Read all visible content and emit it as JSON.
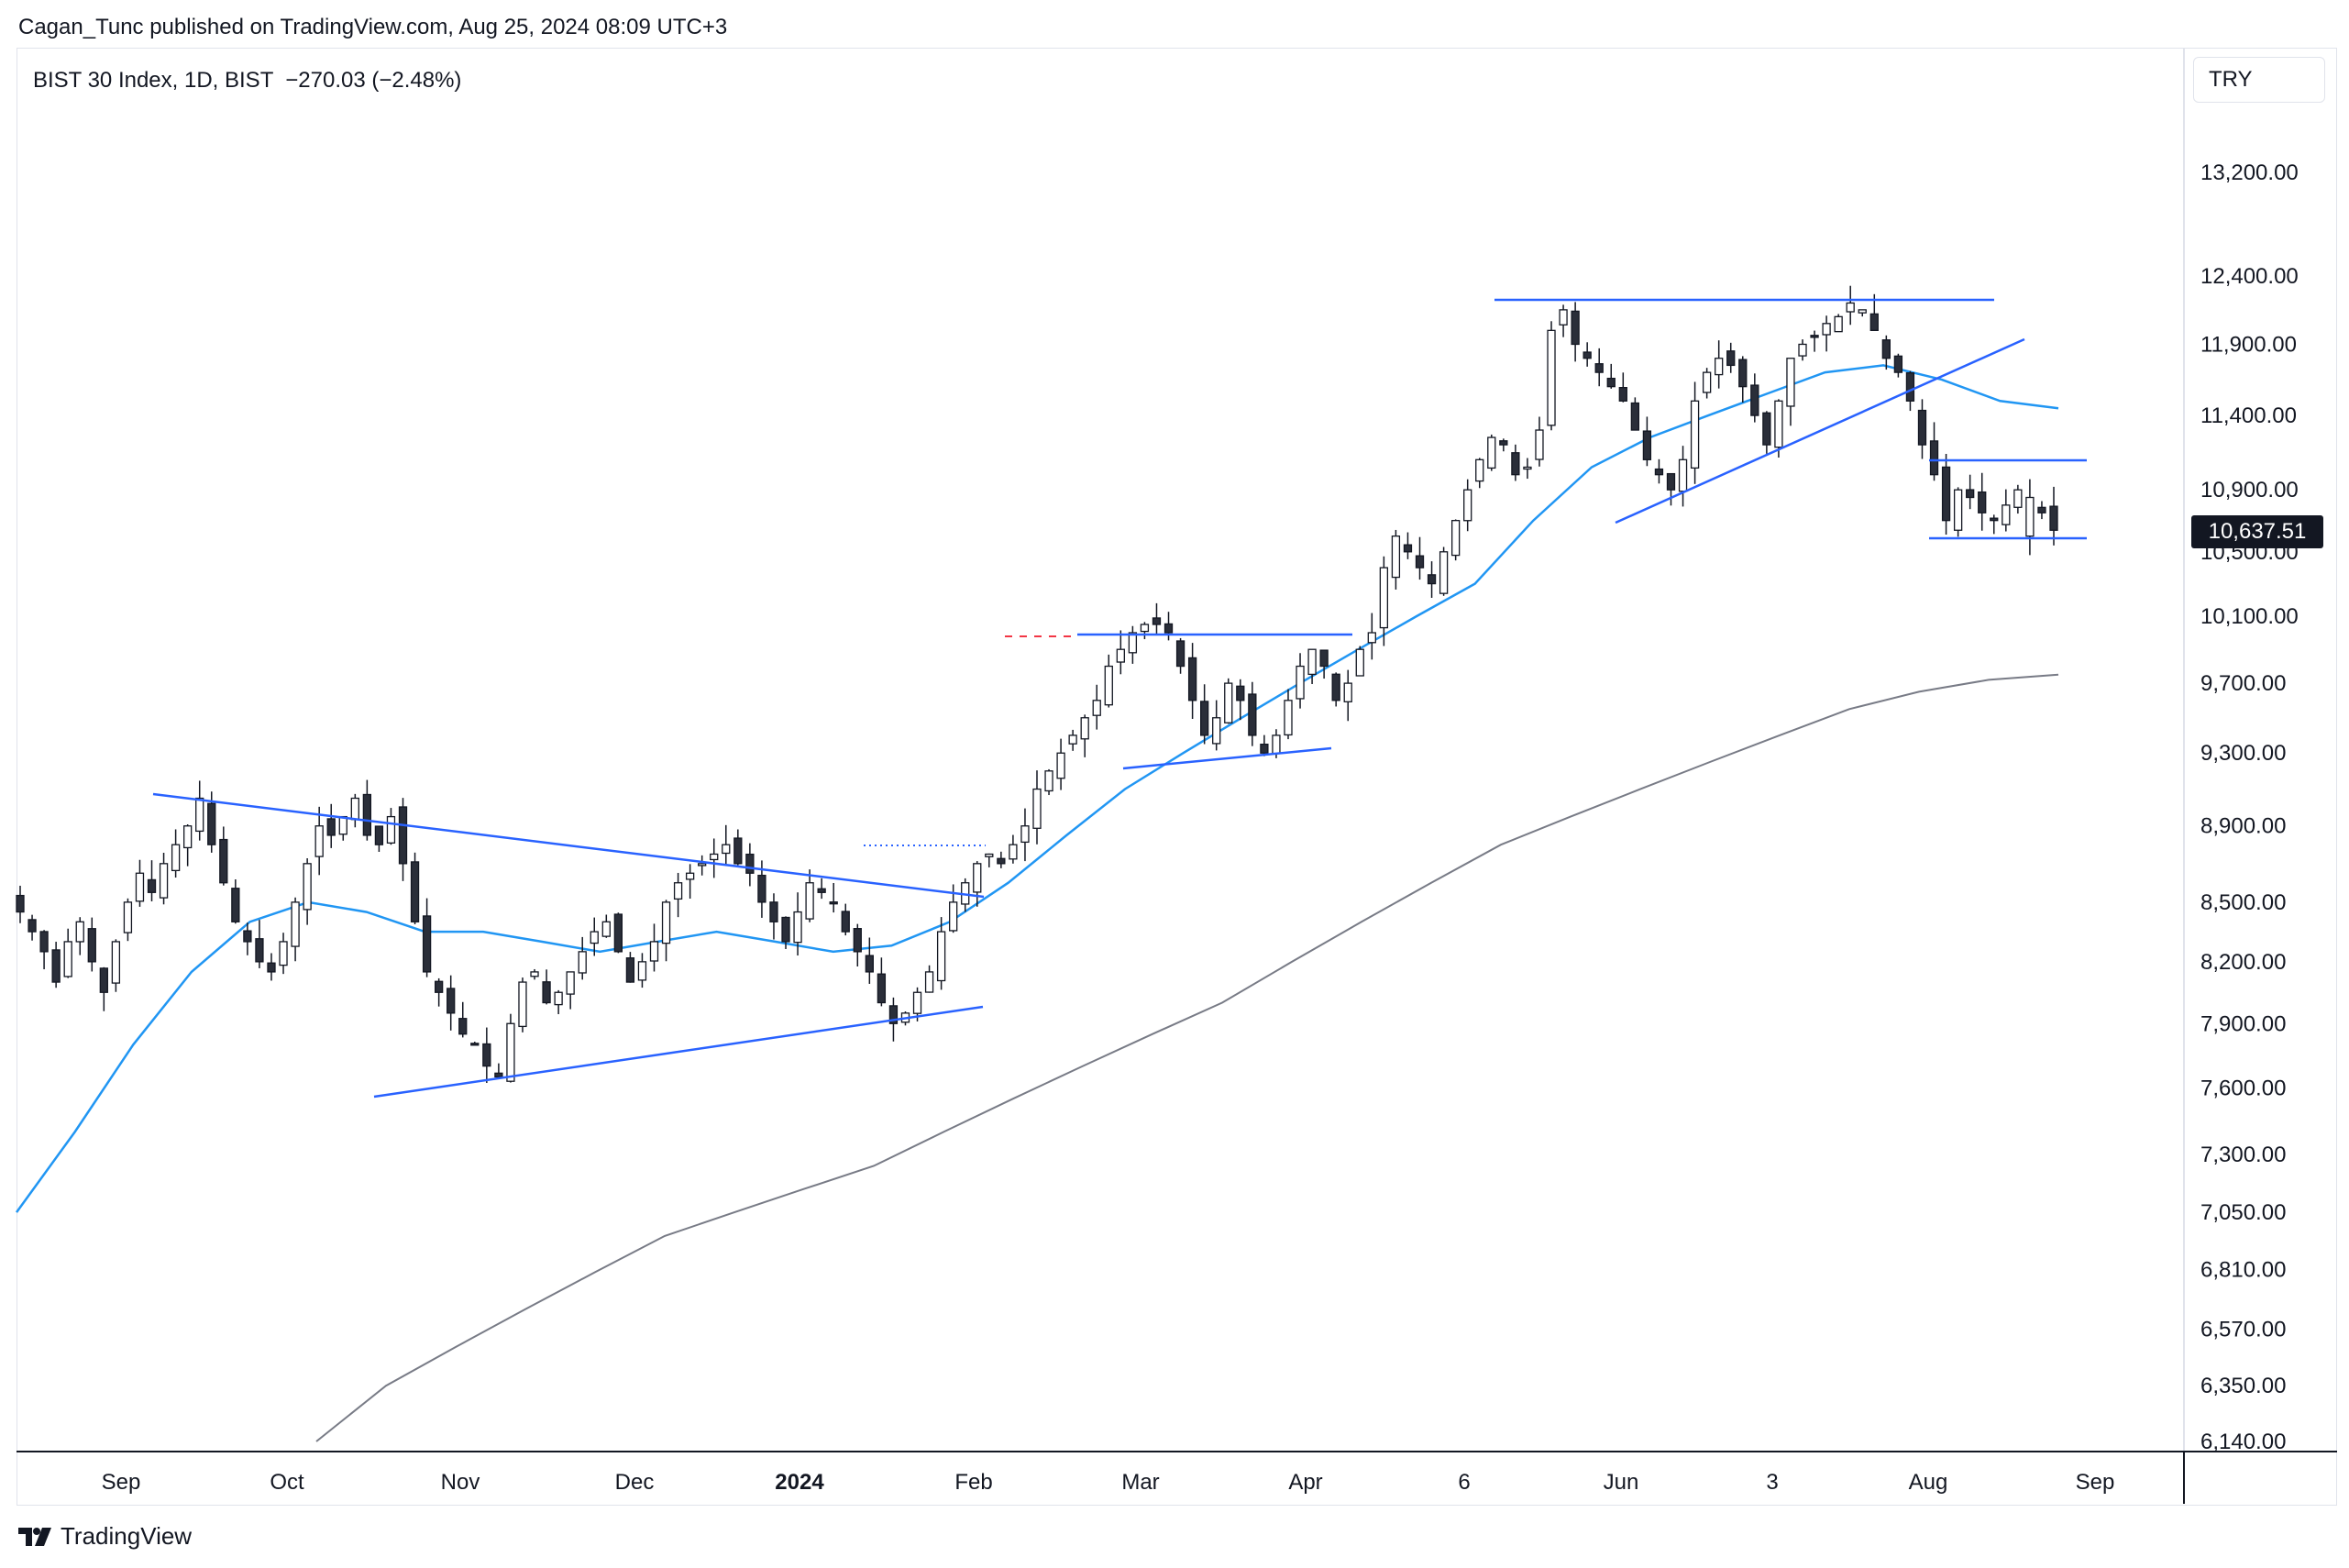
{
  "header": {
    "published": "Cagan_Tunc published on TradingView.com, Aug 25, 2024 08:09 UTC+3"
  },
  "legend": {
    "symbol": "BIST 30 Index, 1D, BIST",
    "change": "−270.03 (−2.48%)"
  },
  "currency": "TRY",
  "footer": {
    "brand": "TradingView"
  },
  "colors": {
    "candle_up_border": "#131722",
    "candle_down_fill": "#2a2e39",
    "ema50": "#2196f3",
    "sma200": "#787b86",
    "trendline": "#2962ff",
    "dashed_red": "#f23645"
  },
  "chart_data": {
    "type": "candlestick",
    "scale": "log",
    "ylim": [
      6100,
      13700
    ],
    "y_ticks": [
      "13,200.00",
      "12,400.00",
      "11,900.00",
      "11,400.00",
      "10,900.00",
      "10,500.00",
      "10,100.00",
      "9,700.00",
      "9,300.00",
      "8,900.00",
      "8,500.00",
      "8,200.00",
      "7,900.00",
      "7,600.00",
      "7,300.00",
      "7,050.00",
      "6,810.00",
      "6,570.00",
      "6,350.00",
      "6,140.00"
    ],
    "x_ticks": [
      {
        "label": "Sep",
        "bold": false
      },
      {
        "label": "Oct",
        "bold": false
      },
      {
        "label": "Nov",
        "bold": false
      },
      {
        "label": "Dec",
        "bold": false
      },
      {
        "label": "2024",
        "bold": true
      },
      {
        "label": "Feb",
        "bold": false
      },
      {
        "label": "Mar",
        "bold": false
      },
      {
        "label": "Apr",
        "bold": false
      },
      {
        "label": "6",
        "bold": false
      },
      {
        "label": "Jun",
        "bold": false
      },
      {
        "label": "3",
        "bold": false
      },
      {
        "label": "Aug",
        "bold": false
      },
      {
        "label": "Sep",
        "bold": false
      }
    ],
    "last_price": "10,637.51",
    "series": [
      {
        "name": "price",
        "close_path": [
          8450,
          8350,
          8250,
          8100,
          8300,
          8400,
          8200,
          8050,
          8300,
          8500,
          8650,
          8550,
          8700,
          8800,
          8900,
          9050,
          8800,
          8600,
          8400,
          8300,
          8200,
          8150,
          8300,
          8500,
          8700,
          8900,
          8850,
          8950,
          9050,
          8850,
          8800,
          8950,
          8700,
          8400,
          8150,
          8050,
          7950,
          7850,
          7800,
          7700,
          7650,
          7900,
          8100,
          8150,
          8000,
          8050,
          8150,
          8250,
          8350,
          8400,
          8250,
          8100,
          8200,
          8300,
          8500,
          8600,
          8650,
          8700,
          8750,
          8800,
          8700,
          8650,
          8500,
          8400,
          8300,
          8450,
          8600,
          8550,
          8500,
          8350,
          8250,
          8150,
          8000,
          7900,
          7950,
          8050,
          8150,
          8350,
          8500,
          8600,
          8700,
          8750,
          8700,
          8800,
          8900,
          9100,
          9200,
          9300,
          9400,
          9500,
          9600,
          9800,
          9900,
          10000,
          10050,
          10050,
          10000,
          9800,
          9600,
          9400,
          9500,
          9700,
          9600,
          9400,
          9300,
          9400,
          9600,
          9800,
          9900,
          9800,
          9600,
          9700,
          9900,
          10000,
          10400,
          10600,
          10500,
          10400,
          10300,
          10500,
          10700,
          10900,
          11100,
          11250,
          11200,
          11000,
          11050,
          11300,
          12000,
          12150,
          11900,
          11800,
          11700,
          11600,
          11500,
          11300,
          11100,
          11000,
          10900,
          11100,
          11500,
          11700,
          11800,
          11750,
          11600,
          11400,
          11200,
          11500,
          11800,
          11900,
          11950,
          12050,
          12100,
          12200,
          12150,
          12000,
          11800,
          11700,
          11500,
          11200,
          11000,
          10700,
          10900,
          10850,
          10750,
          10700,
          10800,
          10900,
          10850,
          10750,
          10637.51
        ],
        "gap_start_index": 168
      },
      {
        "name": "ema50",
        "values": [
          7050,
          7400,
          7800,
          8150,
          8400,
          8500,
          8450,
          8350,
          8350,
          8300,
          8250,
          8300,
          8350,
          8300,
          8250,
          8280,
          8400,
          8600,
          8850,
          9100,
          9300,
          9500,
          9700,
          9900,
          10100,
          10300,
          10700,
          11050,
          11250,
          11400,
          11550,
          11700,
          11750,
          11650,
          11500,
          11450
        ]
      },
      {
        "name": "sma200",
        "values": [
          6140,
          6350,
          6500,
          6650,
          6800,
          6950,
          7050,
          7150,
          7250,
          7400,
          7550,
          7700,
          7850,
          8000,
          8200,
          8400,
          8600,
          8800,
          8950,
          9100,
          9250,
          9400,
          9550,
          9650,
          9720,
          9750
        ]
      }
    ]
  }
}
